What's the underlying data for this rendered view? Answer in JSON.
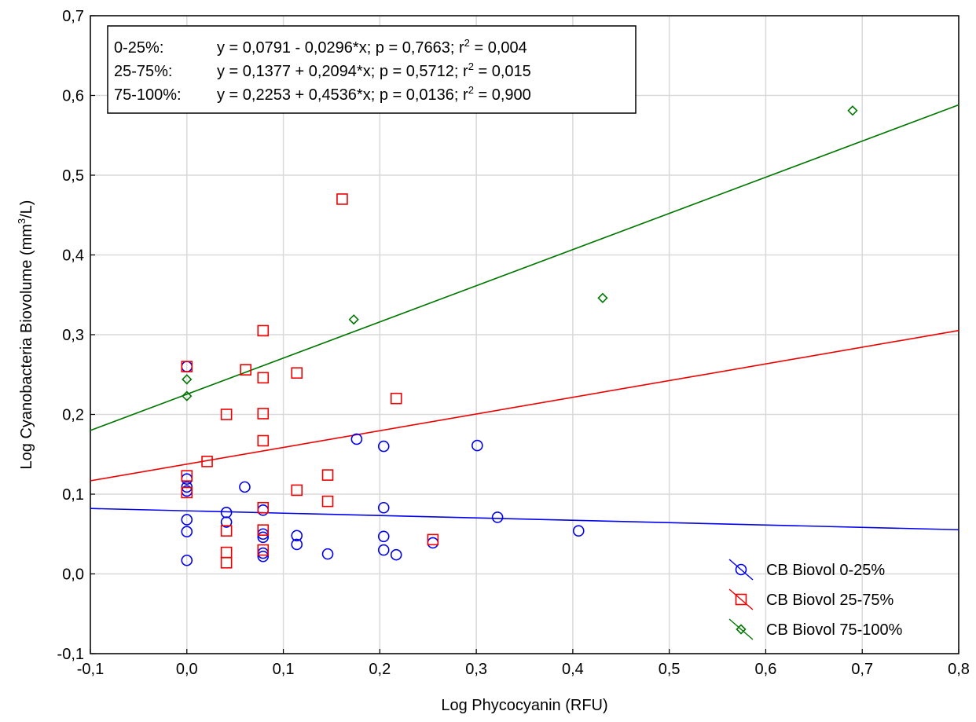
{
  "chart_data": {
    "type": "scatter",
    "xlabel": "Log Phycocyanin (RFU)",
    "ylabel_main": "Log Cyanobacteria Biovolume (mm",
    "ylabel_sup": "3",
    "ylabel_tail": "/L)",
    "xlim": [
      -0.1,
      0.8
    ],
    "ylim": [
      -0.1,
      0.7
    ],
    "x_ticks": [
      -0.1,
      0.0,
      0.1,
      0.2,
      0.3,
      0.4,
      0.5,
      0.6,
      0.7,
      0.8
    ],
    "x_tick_labels": [
      "-0,1",
      "0,0",
      "0,1",
      "0,2",
      "0,3",
      "0,4",
      "0,5",
      "0,6",
      "0,7",
      "0,8"
    ],
    "y_ticks": [
      -0.1,
      0.0,
      0.1,
      0.2,
      0.3,
      0.4,
      0.5,
      0.6,
      0.7
    ],
    "y_tick_labels": [
      "-0,1",
      "0,0",
      "0,1",
      "0,2",
      "0,3",
      "0,4",
      "0,5",
      "0,6",
      "0,7"
    ],
    "grid": true,
    "legend_position": "bottom-right",
    "equations": [
      {
        "label": "0-25%:",
        "text": "y = 0,0791 - 0,0296*x; p = 0,7663; r",
        "sup": "2",
        "tail": " = 0,004"
      },
      {
        "label": "25-75%:",
        "text": "y = 0,1377 + 0,2094*x; p = 0,5712; r",
        "sup": "2",
        "tail": " = 0,015"
      },
      {
        "label": "75-100%:",
        "text": "y = 0,2253 + 0,4536*x; p = 0,0136; r",
        "sup": "2",
        "tail": " = 0,900"
      }
    ],
    "series": [
      {
        "name": "CB Biovol 0-25%",
        "color": "#0000ee",
        "marker": "circle",
        "fit": {
          "intercept": 0.0791,
          "slope": -0.0296
        },
        "points": [
          [
            0.0,
            0.017
          ],
          [
            0.0,
            0.053
          ],
          [
            0.0,
            0.068
          ],
          [
            0.0,
            0.104
          ],
          [
            0.0,
            0.109
          ],
          [
            0.0,
            0.119
          ],
          [
            0.0,
            0.26
          ],
          [
            0.041,
            0.065
          ],
          [
            0.041,
            0.077
          ],
          [
            0.06,
            0.109
          ],
          [
            0.079,
            0.022
          ],
          [
            0.079,
            0.026
          ],
          [
            0.079,
            0.046
          ],
          [
            0.079,
            0.05
          ],
          [
            0.079,
            0.08
          ],
          [
            0.114,
            0.037
          ],
          [
            0.114,
            0.048
          ],
          [
            0.146,
            0.025
          ],
          [
            0.176,
            0.169
          ],
          [
            0.204,
            0.03
          ],
          [
            0.204,
            0.047
          ],
          [
            0.204,
            0.083
          ],
          [
            0.204,
            0.16
          ],
          [
            0.217,
            0.024
          ],
          [
            0.255,
            0.039
          ],
          [
            0.301,
            0.161
          ],
          [
            0.322,
            0.071
          ],
          [
            0.406,
            0.054
          ]
        ]
      },
      {
        "name": "CB Biovol 25-75%",
        "color": "#ee0000",
        "marker": "square",
        "fit": {
          "intercept": 0.1377,
          "slope": 0.2094
        },
        "points": [
          [
            0.0,
            0.102
          ],
          [
            0.0,
            0.123
          ],
          [
            0.0,
            0.26
          ],
          [
            0.021,
            0.141
          ],
          [
            0.041,
            0.014
          ],
          [
            0.041,
            0.027
          ],
          [
            0.041,
            0.054
          ],
          [
            0.041,
            0.2
          ],
          [
            0.061,
            0.256
          ],
          [
            0.079,
            0.03
          ],
          [
            0.079,
            0.055
          ],
          [
            0.079,
            0.083
          ],
          [
            0.079,
            0.167
          ],
          [
            0.079,
            0.201
          ],
          [
            0.079,
            0.246
          ],
          [
            0.079,
            0.305
          ],
          [
            0.114,
            0.105
          ],
          [
            0.114,
            0.252
          ],
          [
            0.146,
            0.091
          ],
          [
            0.146,
            0.124
          ],
          [
            0.161,
            0.47
          ],
          [
            0.217,
            0.22
          ],
          [
            0.255,
            0.043
          ]
        ]
      },
      {
        "name": "CB Biovol 75-100%",
        "color": "#007700",
        "marker": "diamond",
        "fit": {
          "intercept": 0.2253,
          "slope": 0.4536
        },
        "points": [
          [
            0.0,
            0.223
          ],
          [
            0.0,
            0.244
          ],
          [
            0.173,
            0.319
          ],
          [
            0.431,
            0.346
          ],
          [
            0.69,
            0.581
          ]
        ]
      }
    ]
  }
}
